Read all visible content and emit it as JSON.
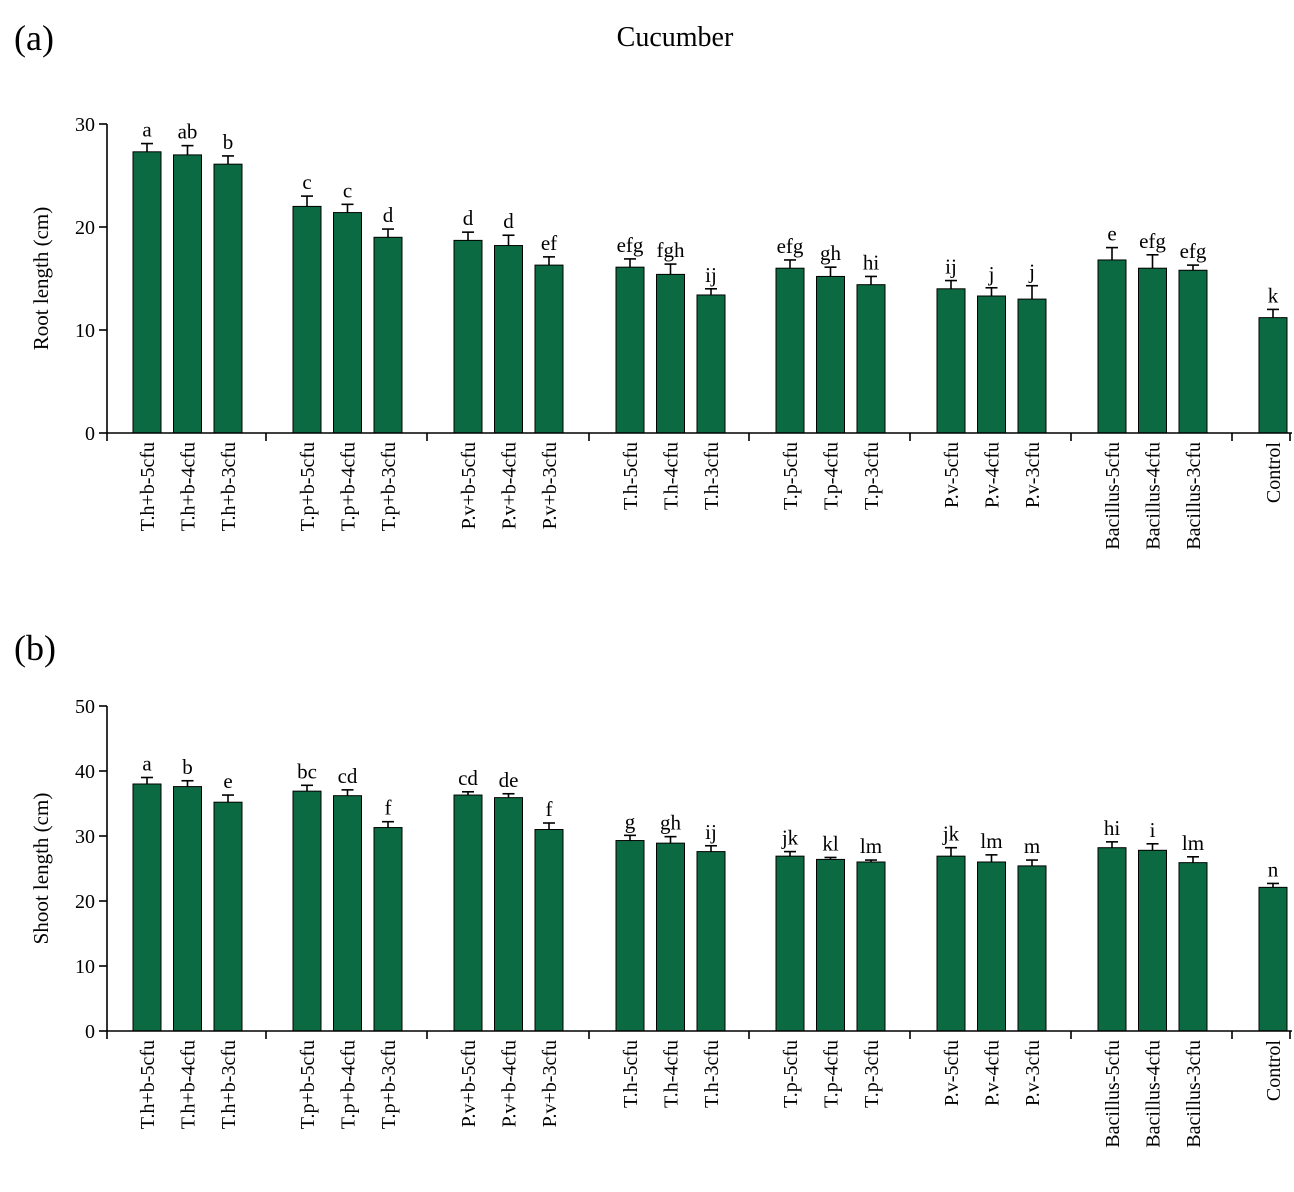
{
  "figure": {
    "title": "Cucumber",
    "panel_a_letter": "(a)",
    "panel_b_letter": "(b)",
    "bar_color": "#0b6a41"
  },
  "chart_data": [
    {
      "type": "bar",
      "title": "Cucumber",
      "ylabel": "Root length (cm)",
      "ylim": [
        0,
        30
      ],
      "yticks": [
        0,
        10,
        20,
        30
      ],
      "grid": false,
      "categories": [
        "T.h+b-5cfu",
        "T.h+b-4cfu",
        "T.h+b-3cfu",
        "T.p+b-5cfu",
        "T.p+b-4cfu",
        "T.p+b-3cfu",
        "P.v+b-5cfu",
        "P.v+b-4cfu",
        "P.v+b-3cfu",
        "T.h-5cfu",
        "T.h-4cfu",
        "T.h-3cfu",
        "T.p-5cfu",
        "T.p-4cfu",
        "T.p-3cfu",
        "P.v-5cfu",
        "P.v-4cfu",
        "P.v-3cfu",
        "Bacillus-5cfu",
        "Bacillus-4cfu",
        "Bacillus-3cfu",
        "Control"
      ],
      "values": [
        27.3,
        27.0,
        26.1,
        22.0,
        21.4,
        19.0,
        18.7,
        18.2,
        16.3,
        16.1,
        15.4,
        13.4,
        16.0,
        15.2,
        14.4,
        14.0,
        13.3,
        13.0,
        16.8,
        16.0,
        15.8,
        11.2
      ],
      "errors": [
        0.8,
        0.9,
        0.8,
        1.0,
        0.8,
        0.8,
        0.8,
        1.0,
        0.8,
        0.8,
        1.0,
        0.6,
        0.8,
        0.9,
        0.8,
        0.8,
        0.8,
        1.3,
        1.2,
        1.3,
        0.5,
        0.8
      ],
      "labels": [
        "a",
        "ab",
        "b",
        "c",
        "c",
        "d",
        "d",
        "d",
        "ef",
        "efg",
        "fgh",
        "ij",
        "efg",
        "gh",
        "hi",
        "ij",
        "j",
        "j",
        "e",
        "efg",
        "efg",
        "k"
      ]
    },
    {
      "type": "bar",
      "ylabel": "Shoot length (cm)",
      "ylim": [
        0,
        50
      ],
      "yticks": [
        0,
        10,
        20,
        30,
        40,
        50
      ],
      "grid": false,
      "categories": [
        "T.h+b-5cfu",
        "T.h+b-4cfu",
        "T.h+b-3cfu",
        "T.p+b-5cfu",
        "T.p+b-4cfu",
        "T.p+b-3cfu",
        "P.v+b-5cfu",
        "P.v+b-4cfu",
        "P.v+b-3cfu",
        "T.h-5cfu",
        "T.h-4cfu",
        "T.h-3cfu",
        "T.p-5cfu",
        "T.p-4cfu",
        "T.p-3cfu",
        "P.v-5cfu",
        "P.v-4cfu",
        "P.v-3cfu",
        "Bacillus-5cfu",
        "Bacillus-4cfu",
        "Bacillus-3cfu",
        "Control"
      ],
      "values": [
        38.0,
        37.6,
        35.2,
        36.9,
        36.2,
        31.3,
        36.3,
        35.9,
        31.0,
        29.3,
        28.9,
        27.6,
        26.9,
        26.4,
        26.0,
        26.9,
        26.0,
        25.4,
        28.2,
        27.8,
        25.9,
        22.1
      ],
      "errors": [
        1.0,
        0.9,
        1.1,
        0.9,
        0.9,
        0.9,
        0.5,
        0.6,
        1.0,
        0.8,
        1.0,
        0.9,
        0.7,
        0.3,
        0.3,
        1.3,
        1.1,
        0.9,
        0.9,
        1.0,
        0.9,
        0.6
      ],
      "labels": [
        "a",
        "b",
        "e",
        "bc",
        "cd",
        "f",
        "cd",
        "de",
        "f",
        "g",
        "gh",
        "ij",
        "jk",
        "kl",
        "lm",
        "jk",
        "lm",
        "m",
        "hi",
        "i",
        "lm",
        "n"
      ]
    }
  ]
}
